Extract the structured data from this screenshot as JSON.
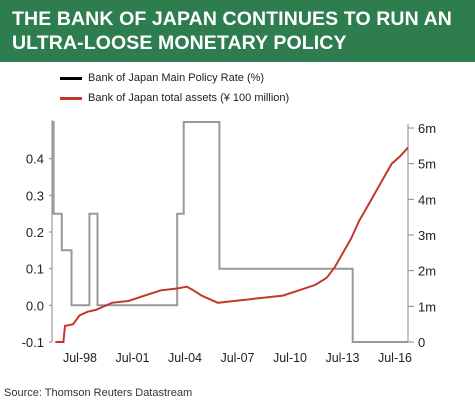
{
  "title": "THE BANK OF JAPAN CONTINUES TO RUN AN ULTRA-LOOSE MONETARY POLICY",
  "source": "Source: Thomson Reuters Datastream",
  "colors": {
    "banner": "#2e7d4f",
    "policy_rate": "#999999",
    "total_assets": "#c0392b",
    "legend_policy": "#000000"
  },
  "chart_data": {
    "type": "line",
    "grid": false,
    "legend_placement": "top-left",
    "x_tick_labels": [
      "Jul-98",
      "Jul-01",
      "Jul-04",
      "Jul-07",
      "Jul-10",
      "Jul-13",
      "Jul-16"
    ],
    "x_range": [
      1996.3,
      2018.2
    ],
    "y_left": {
      "range": [
        -0.1,
        0.5
      ],
      "ticks": [
        -0.1,
        0.0,
        0.1,
        0.2,
        0.3,
        0.4
      ],
      "tick_labels": [
        "-0.1",
        "0.0",
        "0.1",
        "0.2",
        "0.3",
        "0.4"
      ]
    },
    "y_right": {
      "range": [
        0,
        6
      ],
      "ticks": [
        0,
        1,
        2,
        3,
        4,
        5,
        6
      ],
      "tick_labels": [
        "0",
        "1m",
        "2m",
        "3m",
        "4m",
        "5m",
        "6m"
      ]
    },
    "series": [
      {
        "name": "Bank of Japan Main Policy Rate (%)",
        "axis": "left",
        "step": true,
        "points": [
          [
            1996.3,
            0.5
          ],
          [
            1996.4,
            0.25
          ],
          [
            1996.9,
            0.15
          ],
          [
            1997.5,
            0.0
          ],
          [
            1998.5,
            0.0
          ],
          [
            1998.6,
            0.25
          ],
          [
            1999.1,
            0.0
          ],
          [
            2003.9,
            0.0
          ],
          [
            2004.0,
            0.25
          ],
          [
            2004.4,
            0.5
          ],
          [
            2006.5,
            0.5
          ],
          [
            2006.6,
            0.1
          ],
          [
            2014.7,
            0.1
          ],
          [
            2014.8,
            -0.1
          ],
          [
            2018.2,
            -0.1
          ]
        ]
      },
      {
        "name": "Bank of Japan total assets (¥ 100 million)",
        "axis": "right",
        "points": [
          [
            1996.5,
            0.0
          ],
          [
            1997.0,
            0.0
          ],
          [
            1997.1,
            0.45
          ],
          [
            1997.6,
            0.5
          ],
          [
            1998.0,
            0.75
          ],
          [
            1998.5,
            0.85
          ],
          [
            1999.0,
            0.9
          ],
          [
            1999.5,
            1.0
          ],
          [
            2000.0,
            1.1
          ],
          [
            2001.0,
            1.15
          ],
          [
            2002.0,
            1.3
          ],
          [
            2003.0,
            1.45
          ],
          [
            2004.0,
            1.5
          ],
          [
            2004.6,
            1.55
          ],
          [
            2005.0,
            1.45
          ],
          [
            2005.5,
            1.3
          ],
          [
            2006.5,
            1.1
          ],
          [
            2007.5,
            1.15
          ],
          [
            2008.5,
            1.2
          ],
          [
            2009.5,
            1.25
          ],
          [
            2010.5,
            1.3
          ],
          [
            2011.5,
            1.45
          ],
          [
            2012.5,
            1.6
          ],
          [
            2013.2,
            1.8
          ],
          [
            2013.7,
            2.1
          ],
          [
            2014.2,
            2.5
          ],
          [
            2014.7,
            2.9
          ],
          [
            2015.2,
            3.4
          ],
          [
            2015.7,
            3.8
          ],
          [
            2016.2,
            4.2
          ],
          [
            2016.7,
            4.6
          ],
          [
            2017.2,
            5.0
          ],
          [
            2017.7,
            5.2
          ],
          [
            2018.2,
            5.45
          ]
        ]
      }
    ]
  }
}
